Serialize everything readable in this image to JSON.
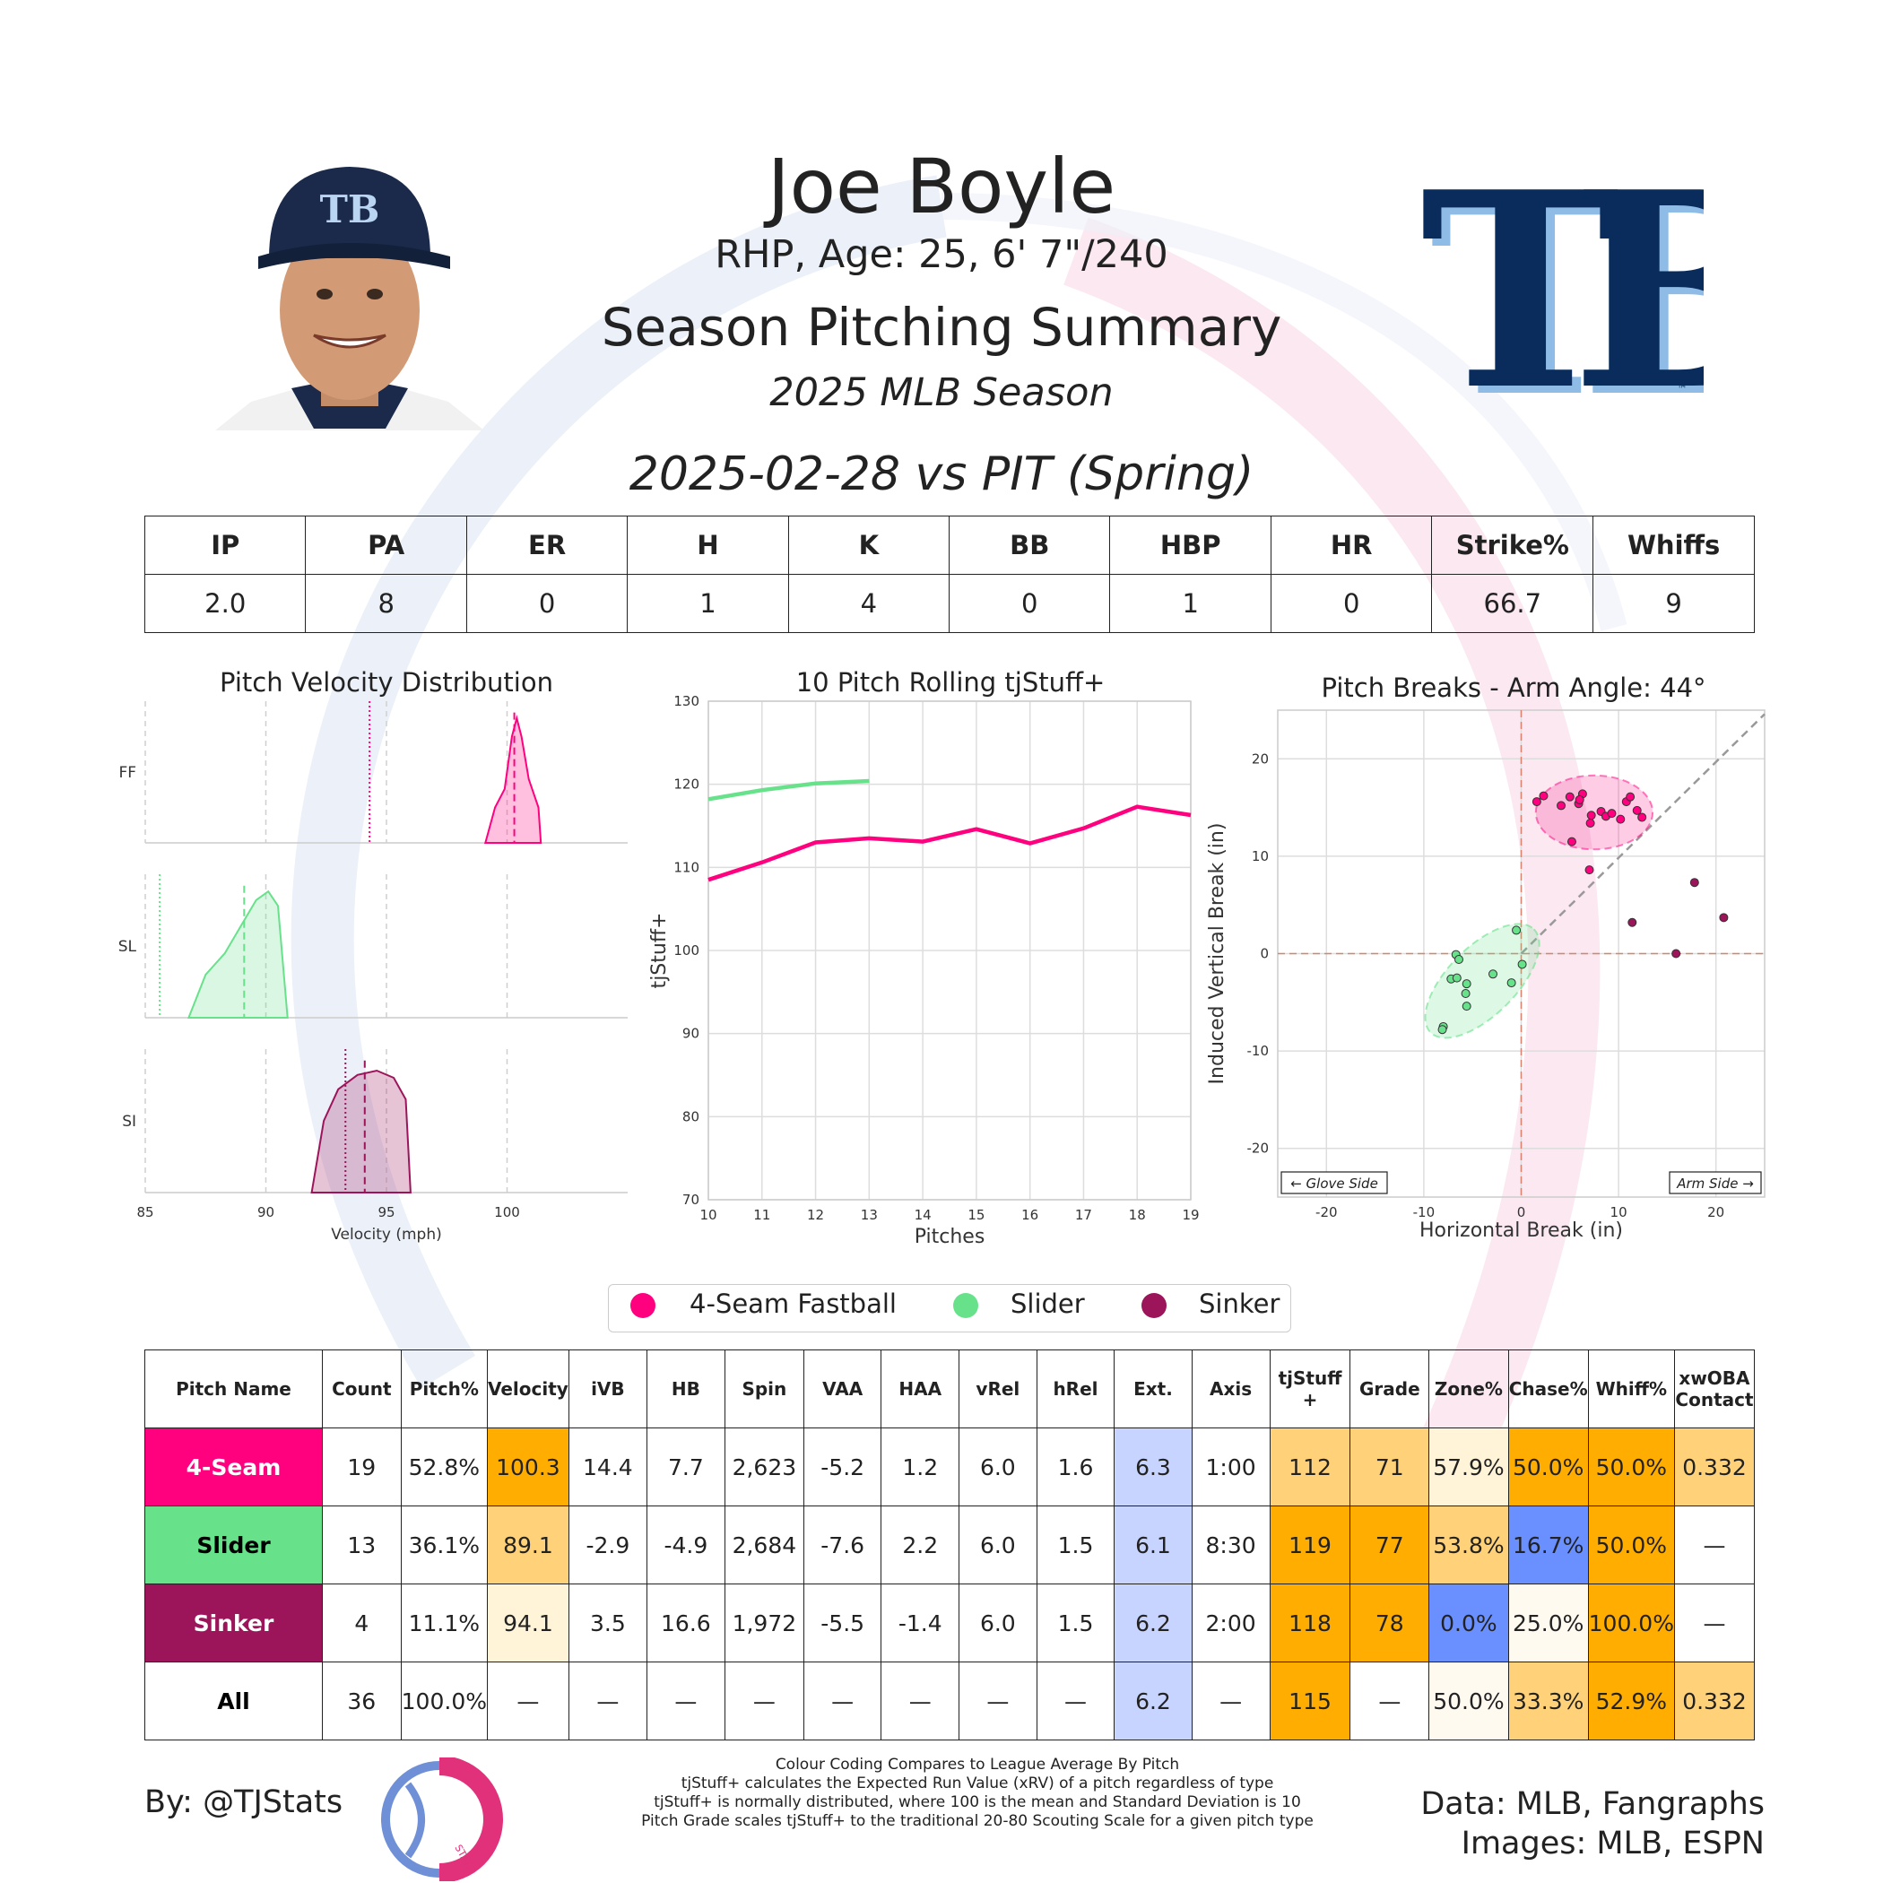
{
  "header": {
    "player_name": "Joe Boyle",
    "bio": "RHP, Age: 25, 6' 7\"/240",
    "title": "Season Pitching Summary",
    "season": "2025 MLB Season",
    "game": "2025-02-28 vs PIT (Spring)",
    "team_logo_text": "TB"
  },
  "colors": {
    "four_seam": "#ff007f",
    "slider": "#68e18b",
    "sinker": "#9c155a",
    "high": "#ffad00",
    "mid_high": "#ffd27a",
    "light": "#fff4d8",
    "low": "#6a8fff",
    "neutral_blue": "#c7d4ff"
  },
  "stat_line": {
    "headers": [
      "IP",
      "PA",
      "ER",
      "H",
      "K",
      "BB",
      "HBP",
      "HR",
      "Strike%",
      "Whiffs"
    ],
    "values": [
      "2.0",
      "8",
      "0",
      "1",
      "4",
      "0",
      "1",
      "0",
      "66.7",
      "9"
    ]
  },
  "chart_data": [
    {
      "type": "area",
      "title": "Pitch Velocity Distribution",
      "xlabel": "Velocity (mph)",
      "xlim": [
        85,
        105
      ],
      "xticks": [
        "85",
        "90",
        "95",
        "100"
      ],
      "series": [
        {
          "name": "FF",
          "kde_x": [
            99.1,
            99.5,
            99.9,
            100.2,
            100.4,
            100.6,
            100.9,
            101.3,
            101.4
          ],
          "kde_y": [
            0,
            0.25,
            0.38,
            0.75,
            0.88,
            0.75,
            0.45,
            0.25,
            0
          ],
          "mean": 100.3,
          "league_mean": 94.3
        },
        {
          "name": "SL",
          "kde_x": [
            86.8,
            87.5,
            88.3,
            89.0,
            89.6,
            90.1,
            90.5,
            90.9
          ],
          "kde_y": [
            0,
            0.3,
            0.45,
            0.65,
            0.82,
            0.88,
            0.78,
            0
          ],
          "mean": 89.1,
          "league_mean": 85.6
        },
        {
          "name": "SI",
          "kde_x": [
            91.9,
            92.4,
            93.0,
            93.8,
            94.6,
            95.3,
            95.8,
            96.0
          ],
          "kde_y": [
            0,
            0.5,
            0.72,
            0.82,
            0.85,
            0.8,
            0.65,
            0
          ],
          "mean": 94.1,
          "league_mean": 93.3
        }
      ]
    },
    {
      "type": "line",
      "title": "10 Pitch Rolling tjStuff+",
      "xlabel": "Pitches",
      "ylabel": "tjStuff+",
      "xlim": [
        10,
        19
      ],
      "ylim": [
        70,
        130
      ],
      "xticks": [
        "10",
        "11",
        "12",
        "13",
        "14",
        "15",
        "16",
        "17",
        "18",
        "19"
      ],
      "yticks": [
        "70",
        "80",
        "90",
        "100",
        "110",
        "120",
        "130"
      ],
      "series": [
        {
          "name": "4-Seam Fastball",
          "x": [
            10,
            11,
            12,
            13,
            14,
            15,
            16,
            17,
            18,
            19
          ],
          "y": [
            108.5,
            110.6,
            113.0,
            113.5,
            113.1,
            114.6,
            112.9,
            114.7,
            117.3,
            116.3
          ]
        },
        {
          "name": "Slider",
          "x": [
            10,
            11,
            12,
            13
          ],
          "y": [
            118.2,
            119.3,
            120.1,
            120.4
          ]
        }
      ]
    },
    {
      "type": "scatter",
      "title": "Pitch Breaks - Arm Angle: 44°",
      "xlabel": "Horizontal Break (in)",
      "ylabel": "Induced Vertical Break (in)",
      "xlim": [
        -25,
        25
      ],
      "ylim": [
        -25,
        25
      ],
      "xticks": [
        "-20",
        "-10",
        "0",
        "10",
        "20"
      ],
      "yticks": [
        "20",
        "10",
        "0",
        "-10",
        "-20"
      ],
      "glove_label": "← Glove Side",
      "arm_label": "Arm Side →",
      "series": [
        {
          "name": "4-Seam Fastball",
          "points": [
            [
              1.6,
              15.6
            ],
            [
              2.3,
              16.2
            ],
            [
              4.1,
              15.2
            ],
            [
              5.0,
              16.1
            ],
            [
              5.9,
              15.4
            ],
            [
              6.3,
              16.4
            ],
            [
              6.0,
              15.8
            ],
            [
              7.2,
              14.2
            ],
            [
              8.2,
              14.6
            ],
            [
              8.7,
              14.1
            ],
            [
              9.3,
              14.4
            ],
            [
              10.2,
              13.8
            ],
            [
              10.8,
              15.6
            ],
            [
              11.2,
              16.1
            ],
            [
              11.9,
              14.7
            ],
            [
              12.4,
              14.0
            ],
            [
              7.1,
              13.4
            ],
            [
              5.2,
              11.5
            ],
            [
              7.0,
              8.6
            ]
          ]
        },
        {
          "name": "Slider",
          "points": [
            [
              -6.7,
              -0.1
            ],
            [
              -6.4,
              -0.6
            ],
            [
              -7.2,
              -2.6
            ],
            [
              -6.6,
              -2.5
            ],
            [
              -5.6,
              -3.1
            ],
            [
              -5.7,
              -4.1
            ],
            [
              -5.6,
              -5.4
            ],
            [
              -2.9,
              -2.1
            ],
            [
              -1.0,
              -3.0
            ],
            [
              -0.5,
              2.4
            ],
            [
              0.1,
              -1.1
            ],
            [
              -8.0,
              -7.5
            ],
            [
              -8.1,
              -7.8
            ]
          ]
        },
        {
          "name": "Sinker",
          "points": [
            [
              17.8,
              7.3
            ],
            [
              20.8,
              3.7
            ],
            [
              11.4,
              3.2
            ],
            [
              15.9,
              0.0
            ]
          ]
        }
      ]
    }
  ],
  "legend": [
    "4-Seam Fastball",
    "Slider",
    "Sinker"
  ],
  "pitch_table": {
    "headers": [
      "Pitch Name",
      "Count",
      "Pitch%",
      "Velocity",
      "iVB",
      "HB",
      "Spin",
      "VAA",
      "HAA",
      "vRel",
      "hRel",
      "Ext.",
      "Axis",
      "tjStuff +",
      "Grade",
      "Zone%",
      "Chase%",
      "Whiff%",
      "xwOBA Contact"
    ],
    "rows": [
      [
        "4-Seam",
        "19",
        "52.8%",
        "100.3",
        "14.4",
        "7.7",
        "2,623",
        "-5.2",
        "1.2",
        "6.0",
        "1.6",
        "6.3",
        "1:00",
        "112",
        "71",
        "57.9%",
        "50.0%",
        "50.0%",
        "0.332"
      ],
      [
        "Slider",
        "13",
        "36.1%",
        "89.1",
        "-2.9",
        "-4.9",
        "2,684",
        "-7.6",
        "2.2",
        "6.0",
        "1.5",
        "6.1",
        "8:30",
        "119",
        "77",
        "53.8%",
        "16.7%",
        "50.0%",
        "—"
      ],
      [
        "Sinker",
        "4",
        "11.1%",
        "94.1",
        "3.5",
        "16.6",
        "1,972",
        "-5.5",
        "-1.4",
        "6.0",
        "1.5",
        "6.2",
        "2:00",
        "118",
        "78",
        "0.0%",
        "25.0%",
        "100.0%",
        "—"
      ],
      [
        "All",
        "36",
        "100.0%",
        "—",
        "—",
        "—",
        "—",
        "—",
        "—",
        "—",
        "—",
        "6.2",
        "—",
        "115",
        "—",
        "50.0%",
        "33.3%",
        "52.9%",
        "0.332"
      ]
    ]
  },
  "footer": {
    "by": "By: @TJStats",
    "notes": [
      "Colour Coding Compares to League Average By Pitch",
      "tjStuff+ calculates the Expected Run Value (xRV) of a pitch regardless of type",
      "tjStuff+ is normally distributed, where 100 is the mean and Standard Deviation is 10",
      "Pitch Grade scales tjStuff+ to the traditional 20-80 Scouting Scale for a given pitch type"
    ],
    "data_source": "Data: MLB, Fangraphs",
    "image_source": "Images: MLB, ESPN",
    "logo_text": "STATS"
  }
}
